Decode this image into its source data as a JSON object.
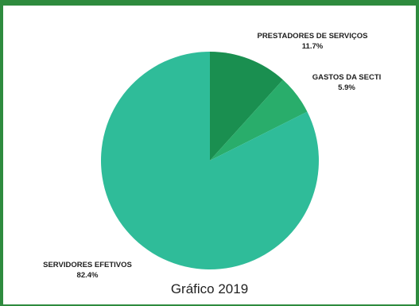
{
  "chart_data": {
    "type": "pie",
    "title": "",
    "caption": "Gráfico 2019",
    "slices": [
      {
        "label": "PRESTADORES DE SERVIÇOS",
        "value": 11.7,
        "value_label": "11.7%",
        "color": "#1a8f50"
      },
      {
        "label": "GASTOS DA SECTI",
        "value": 5.9,
        "value_label": "5.9%",
        "color": "#29ad6b"
      },
      {
        "label": "SERVIDORES EFETIVOS",
        "value": 82.4,
        "value_label": "82.4%",
        "color": "#2fbc99"
      }
    ],
    "start_angle": "12 o'clock, clockwise"
  },
  "colors": {
    "frame": "#2e8b3e"
  }
}
